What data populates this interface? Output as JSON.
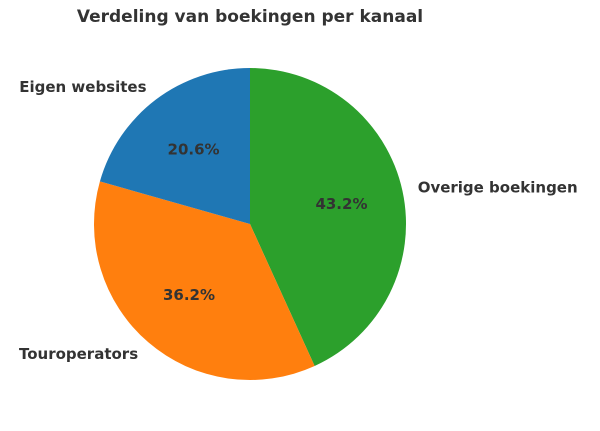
{
  "chart_data": {
    "type": "pie",
    "title": "Verdeling van boekingen per kanaal",
    "categories": [
      "Overige boekingen",
      "Touroperators",
      "Eigen websites"
    ],
    "values": [
      43.2,
      36.2,
      20.6
    ],
    "value_labels": [
      "43.2%",
      "36.2%",
      "20.6%"
    ],
    "colors": [
      "#2ca02c",
      "#ff7f0e",
      "#1f77b4"
    ],
    "start_angle_deg": 90,
    "direction": "clockwise",
    "legend": "none"
  }
}
